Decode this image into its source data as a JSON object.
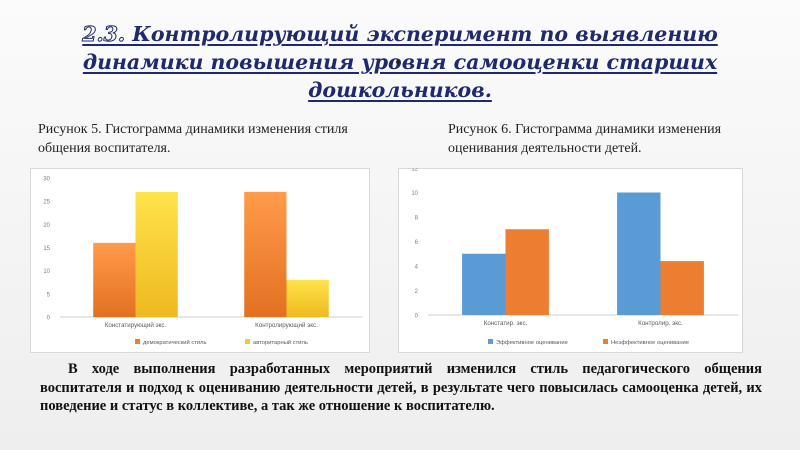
{
  "slide": {
    "title_number": "2.3.",
    "title_rest": " Контролирующий эксперимент по выявлению динамики повышения уровня самооценки старших дошкольников."
  },
  "figures": {
    "fig1_caption": "Рисунок 5. Гистограмма динамики изменения стиля общения воспитателя.",
    "fig2_caption": "Рисунок 6. Гистограмма динамики изменения оценивания деятельности детей."
  },
  "chart_data": [
    {
      "type": "bar",
      "categories": [
        "Констатирующий экс.",
        "Контролирующий экс."
      ],
      "series": [
        {
          "name": "демократический стиль",
          "values": [
            16,
            27
          ]
        },
        {
          "name": "авторитарный стиль",
          "values": [
            27,
            8
          ]
        }
      ],
      "yticks": [
        "0",
        "5",
        "10",
        "15",
        "20",
        "25",
        "30"
      ],
      "ylim": [
        0,
        30
      ],
      "colors": [
        "#f07f2e",
        "#fcc72e"
      ],
      "legend": "bottom",
      "grid": false
    },
    {
      "type": "bar",
      "categories": [
        "Констатир. экс.",
        "Контролир. экс."
      ],
      "series": [
        {
          "name": "Эффективное оценивание",
          "values": [
            5,
            10
          ]
        },
        {
          "name": "Неэффективное оценивание",
          "values": [
            7,
            4.4
          ]
        }
      ],
      "yticks": [
        "0",
        "2",
        "4",
        "6",
        "8",
        "10",
        "12"
      ],
      "ylim": [
        0,
        12
      ],
      "colors": [
        "#5b9bd5",
        "#ed7d31"
      ],
      "legend": "bottom",
      "grid": false
    }
  ],
  "body_text": "В ходе выполнения разработанных мероприятий изменился стиль педагогического общения воспитателя и подход к оцениванию деятельности детей, в результате чего повысилась самооценка детей, их поведение и статус в коллективе, а так же отношение к воспитателю."
}
